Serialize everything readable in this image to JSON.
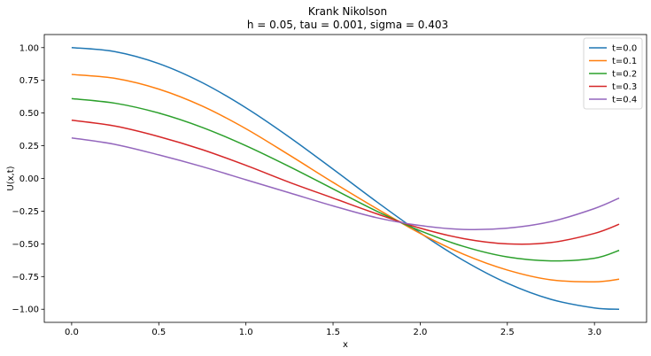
{
  "chart_data": {
    "type": "line",
    "title": "Krank Nikolson",
    "subtitle": "h = 0.05, tau = 0.001, sigma = 0.403",
    "xlabel": "x",
    "ylabel": "U(x,t)",
    "xlim": [
      -0.157,
      3.299
    ],
    "ylim": [
      -1.1,
      1.1
    ],
    "xticks": [
      0.0,
      0.5,
      1.0,
      1.5,
      2.0,
      2.5,
      3.0
    ],
    "xtick_labels": [
      "0.0",
      "0.5",
      "1.0",
      "1.5",
      "2.0",
      "2.5",
      "3.0"
    ],
    "yticks": [
      -1.0,
      -0.75,
      -0.5,
      -0.25,
      0.0,
      0.25,
      0.5,
      0.75,
      1.0
    ],
    "ytick_labels": [
      "−1.00",
      "−0.75",
      "−0.50",
      "−0.25",
      "0.00",
      "0.25",
      "0.50",
      "0.75",
      "1.00"
    ],
    "grid": false,
    "legend_position": "top-right",
    "x": [
      0.0,
      0.25,
      0.5,
      0.75,
      1.0,
      1.25,
      1.5,
      1.75,
      2.0,
      2.25,
      2.5,
      2.75,
      3.0,
      3.1416
    ],
    "series": [
      {
        "name": "t=0.0",
        "color": "#1f77b4",
        "values": [
          1.0,
          0.969,
          0.878,
          0.732,
          0.54,
          0.315,
          0.071,
          -0.178,
          -0.416,
          -0.628,
          -0.801,
          -0.924,
          -0.99,
          -1.0
        ]
      },
      {
        "name": "t=0.1",
        "color": "#ff7f0e",
        "values": [
          0.795,
          0.765,
          0.683,
          0.553,
          0.38,
          0.178,
          -0.03,
          -0.23,
          -0.42,
          -0.58,
          -0.7,
          -0.775,
          -0.79,
          -0.77
        ]
      },
      {
        "name": "t=0.2",
        "color": "#2ca02c",
        "values": [
          0.61,
          0.575,
          0.5,
          0.39,
          0.25,
          0.09,
          -0.08,
          -0.25,
          -0.4,
          -0.52,
          -0.6,
          -0.63,
          -0.61,
          -0.55
        ]
      },
      {
        "name": "t=0.3",
        "color": "#d62728",
        "values": [
          0.445,
          0.4,
          0.32,
          0.22,
          0.1,
          -0.03,
          -0.15,
          -0.27,
          -0.38,
          -0.46,
          -0.5,
          -0.49,
          -0.42,
          -0.35
        ]
      },
      {
        "name": "t=0.4",
        "color": "#9467bd",
        "values": [
          0.31,
          0.26,
          0.18,
          0.09,
          -0.01,
          -0.11,
          -0.21,
          -0.3,
          -0.36,
          -0.39,
          -0.38,
          -0.33,
          -0.23,
          -0.15
        ]
      }
    ]
  }
}
